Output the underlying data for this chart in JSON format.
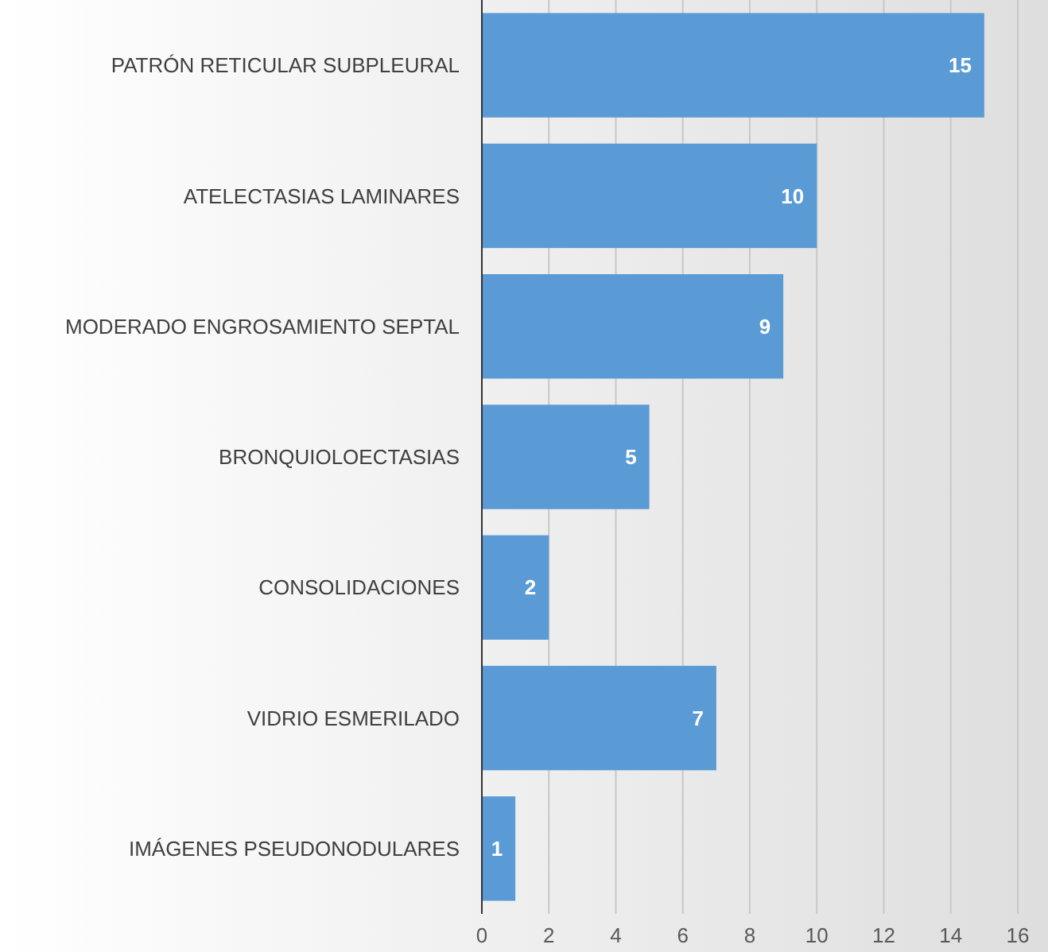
{
  "chart_data": {
    "type": "bar",
    "orientation": "horizontal",
    "categories": [
      "PATRÓN RETICULAR SUBPLEURAL",
      "ATELECTASIAS LAMINARES",
      "MODERADO ENGROSAMIENTO SEPTAL",
      "BRONQUIOLOECTASIAS",
      "CONSOLIDACIONES",
      "VIDRIO ESMERILADO",
      "IMÁGENES PSEUDONODULARES"
    ],
    "values": [
      15,
      10,
      9,
      5,
      2,
      7,
      1
    ],
    "color": "#5b9bd5",
    "xlim": [
      0,
      16
    ],
    "xticks": [
      0,
      2,
      4,
      6,
      8,
      10,
      12,
      14,
      16
    ],
    "grid": "x",
    "data_labels": true
  }
}
